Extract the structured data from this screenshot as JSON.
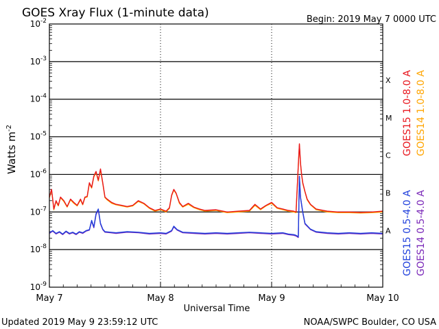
{
  "chart_data": {
    "type": "line",
    "title": "GOES Xray Flux (1-minute data)",
    "begin_label": "Begin:  2019 May 7 0000 UTC",
    "xlabel": "Universal Time",
    "ylabel": "Watts m",
    "ylabel_exp": "-2",
    "y_scale": "log",
    "ylim": [
      1e-09,
      0.01
    ],
    "xlim_days": [
      0,
      3
    ],
    "x_ticks": [
      {
        "day": 0,
        "label": "May 7"
      },
      {
        "day": 1,
        "label": "May 8"
      },
      {
        "day": 2,
        "label": "May 9"
      },
      {
        "day": 3,
        "label": "May 10"
      }
    ],
    "y_ticks": [
      {
        "value": 0.01,
        "exp": "-2"
      },
      {
        "value": 0.001,
        "exp": "-3"
      },
      {
        "value": 0.0001,
        "exp": "-4"
      },
      {
        "value": 1e-05,
        "exp": "-5"
      },
      {
        "value": 1e-06,
        "exp": "-6"
      },
      {
        "value": 1e-07,
        "exp": "-7"
      },
      {
        "value": 1e-08,
        "exp": "-8"
      },
      {
        "value": 1e-09,
        "exp": "-9"
      }
    ],
    "flare_classes": [
      {
        "label": "X",
        "value": 0.00032
      },
      {
        "label": "M",
        "value": 3.2e-05
      },
      {
        "label": "C",
        "value": 3.2e-06
      },
      {
        "label": "B",
        "value": 3.2e-07
      },
      {
        "label": "A",
        "value": 3.2e-08
      }
    ],
    "grid": "horizontal lines at each decade, dotted vertical lines at day boundaries",
    "legend_placement": "right, vertical",
    "series": [
      {
        "name": "GOES15 1.0-8.0 A",
        "color": "#e8141c",
        "x": [
          0.0,
          0.02,
          0.04,
          0.06,
          0.08,
          0.1,
          0.13,
          0.16,
          0.19,
          0.22,
          0.25,
          0.28,
          0.3,
          0.32,
          0.34,
          0.36,
          0.38,
          0.4,
          0.42,
          0.44,
          0.46,
          0.48,
          0.5,
          0.52,
          0.56,
          0.6,
          0.65,
          0.7,
          0.75,
          0.8,
          0.85,
          0.9,
          0.95,
          1.0,
          1.05,
          1.08,
          1.1,
          1.12,
          1.14,
          1.17,
          1.2,
          1.25,
          1.3,
          1.35,
          1.4,
          1.5,
          1.6,
          1.7,
          1.8,
          1.85,
          1.9,
          1.95,
          2.0,
          2.05,
          2.1,
          2.15,
          2.2,
          2.22,
          2.24,
          2.25,
          2.26,
          2.27,
          2.28,
          2.3,
          2.32,
          2.35,
          2.4,
          2.5,
          2.6,
          2.7,
          2.8,
          2.9,
          3.0
        ],
        "y": [
          2.5e-07,
          4e-07,
          1.2e-07,
          2e-07,
          1.5e-07,
          2.5e-07,
          2e-07,
          1.4e-07,
          2.2e-07,
          1.8e-07,
          1.5e-07,
          2.2e-07,
          1.6e-07,
          2.5e-07,
          2.6e-07,
          6e-07,
          4.5e-07,
          9e-07,
          1.2e-06,
          7e-07,
          1.4e-06,
          6e-07,
          2.5e-07,
          2.2e-07,
          1.8e-07,
          1.6e-07,
          1.5e-07,
          1.4e-07,
          1.5e-07,
          2e-07,
          1.7e-07,
          1.3e-07,
          1.1e-07,
          1.2e-07,
          1.05e-07,
          1.3e-07,
          2.8e-07,
          4e-07,
          3.2e-07,
          1.8e-07,
          1.4e-07,
          1.7e-07,
          1.35e-07,
          1.2e-07,
          1.1e-07,
          1.15e-07,
          1e-07,
          1.05e-07,
          1.1e-07,
          1.6e-07,
          1.2e-07,
          1.5e-07,
          1.8e-07,
          1.3e-07,
          1.2e-07,
          1.1e-07,
          1.05e-07,
          1e-07,
          1.8e-06,
          6.5e-06,
          2e-06,
          1e-06,
          6e-07,
          3.5e-07,
          2.2e-07,
          1.6e-07,
          1.2e-07,
          1.05e-07,
          1e-07,
          1e-07,
          9.8e-08,
          1e-07,
          1.05e-07
        ]
      },
      {
        "name": "GOES14 1.0-8.0 A",
        "color": "#ffa500",
        "x": [
          0.0,
          0.02,
          0.04,
          0.06,
          0.08,
          0.1,
          0.13,
          0.16,
          0.19,
          0.22,
          0.25,
          0.28,
          0.3,
          0.32,
          0.34,
          0.36,
          0.38,
          0.4,
          0.42,
          0.44,
          0.46,
          0.48,
          0.5,
          0.52,
          0.56,
          0.6,
          0.65,
          0.7,
          0.75,
          0.8,
          0.85,
          0.9,
          0.95,
          1.0,
          1.05,
          1.08,
          1.1,
          1.12,
          1.14,
          1.17,
          1.2,
          1.25,
          1.3,
          1.35,
          1.4,
          1.5,
          1.6,
          1.7,
          1.8,
          1.85,
          1.9,
          1.95,
          2.0,
          2.05,
          2.1,
          2.15,
          2.2,
          2.22,
          2.24,
          2.25,
          2.26,
          2.27,
          2.28,
          2.3,
          2.32,
          2.35,
          2.4,
          2.5,
          2.6,
          2.7,
          2.8,
          2.9,
          3.0
        ],
        "y": [
          2.4e-07,
          3.8e-07,
          1.15e-07,
          1.9e-07,
          1.45e-07,
          2.4e-07,
          1.9e-07,
          1.35e-07,
          2.1e-07,
          1.7e-07,
          1.45e-07,
          2.1e-07,
          1.55e-07,
          2.4e-07,
          2.5e-07,
          5.7e-07,
          4.3e-07,
          8.5e-07,
          1.15e-06,
          6.7e-07,
          1.3e-06,
          5.7e-07,
          2.4e-07,
          2.1e-07,
          1.7e-07,
          1.55e-07,
          1.45e-07,
          1.35e-07,
          1.45e-07,
          1.9e-07,
          1.65e-07,
          1.25e-07,
          1.05e-07,
          1.15e-07,
          1e-07,
          1.25e-07,
          2.7e-07,
          3.8e-07,
          3.1e-07,
          1.7e-07,
          1.35e-07,
          1.6e-07,
          1.3e-07,
          1.15e-07,
          1.05e-07,
          1.1e-07,
          9.6e-08,
          1e-07,
          1.05e-07,
          1.5e-07,
          1.15e-07,
          1.45e-07,
          1.7e-07,
          1.25e-07,
          1.15e-07,
          1.05e-07,
          1e-07,
          9.6e-08,
          1.7e-06,
          6.2e-06,
          1.9e-06,
          9.6e-07,
          5.7e-07,
          3.4e-07,
          2.1e-07,
          1.55e-07,
          1.15e-07,
          1e-07,
          9.6e-08,
          9.6e-08,
          9.4e-08,
          9.6e-08,
          1e-07
        ]
      },
      {
        "name": "GOES15 0.5-4.0 A",
        "color": "#1f3fdc",
        "x": [
          0.0,
          0.03,
          0.06,
          0.09,
          0.12,
          0.15,
          0.18,
          0.21,
          0.24,
          0.27,
          0.3,
          0.33,
          0.36,
          0.38,
          0.4,
          0.42,
          0.44,
          0.46,
          0.48,
          0.5,
          0.55,
          0.6,
          0.7,
          0.8,
          0.9,
          1.0,
          1.05,
          1.1,
          1.12,
          1.15,
          1.2,
          1.3,
          1.4,
          1.5,
          1.6,
          1.7,
          1.8,
          1.9,
          2.0,
          2.1,
          2.15,
          2.2,
          2.22,
          2.24,
          2.25,
          2.26,
          2.28,
          2.3,
          2.35,
          2.4,
          2.5,
          2.6,
          2.7,
          2.8,
          2.9,
          3.0
        ],
        "y": [
          2.8e-08,
          3.2e-08,
          2.7e-08,
          3e-08,
          2.6e-08,
          3.1e-08,
          2.7e-08,
          2.9e-08,
          2.6e-08,
          3e-08,
          2.8e-08,
          3.2e-08,
          3.4e-08,
          6e-08,
          4e-08,
          9e-08,
          1.2e-07,
          5e-08,
          3.5e-08,
          3e-08,
          2.9e-08,
          2.8e-08,
          3e-08,
          2.9e-08,
          2.7e-08,
          2.8e-08,
          2.7e-08,
          3.2e-08,
          4.2e-08,
          3.4e-08,
          2.9e-08,
          2.8e-08,
          2.7e-08,
          2.8e-08,
          2.7e-08,
          2.8e-08,
          2.9e-08,
          2.8e-08,
          2.7e-08,
          2.8e-08,
          2.6e-08,
          2.5e-08,
          2.4e-08,
          2.2e-08,
          9e-07,
          2.5e-07,
          1e-07,
          5e-08,
          3.5e-08,
          3e-08,
          2.8e-08,
          2.7e-08,
          2.8e-08,
          2.7e-08,
          2.8e-08,
          2.7e-08
        ]
      },
      {
        "name": "GOES14 0.5-4.0 A",
        "color": "#7a28b8",
        "x": [
          0.0,
          0.03,
          0.06,
          0.09,
          0.12,
          0.15,
          0.18,
          0.21,
          0.24,
          0.27,
          0.3,
          0.33,
          0.36,
          0.38,
          0.4,
          0.42,
          0.44,
          0.46,
          0.48,
          0.5,
          0.55,
          0.6,
          0.7,
          0.8,
          0.9,
          1.0,
          1.05,
          1.1,
          1.12,
          1.15,
          1.2,
          1.3,
          1.4,
          1.5,
          1.6,
          1.7,
          1.8,
          1.9,
          2.0,
          2.1,
          2.15,
          2.2,
          2.22,
          2.24,
          2.25,
          2.26,
          2.28,
          2.3,
          2.35,
          2.4,
          2.5,
          2.6,
          2.7,
          2.8,
          2.9,
          3.0
        ],
        "y": [
          2.7e-08,
          3.1e-08,
          2.6e-08,
          2.9e-08,
          2.5e-08,
          3e-08,
          2.6e-08,
          2.8e-08,
          2.5e-08,
          2.9e-08,
          2.7e-08,
          3.1e-08,
          3.3e-08,
          5.7e-08,
          3.8e-08,
          8.5e-08,
          1.15e-07,
          4.8e-08,
          3.4e-08,
          2.9e-08,
          2.8e-08,
          2.7e-08,
          2.9e-08,
          2.8e-08,
          2.6e-08,
          2.7e-08,
          2.6e-08,
          3.1e-08,
          4e-08,
          3.3e-08,
          2.8e-08,
          2.7e-08,
          2.6e-08,
          2.7e-08,
          2.6e-08,
          2.7e-08,
          2.8e-08,
          2.7e-08,
          2.6e-08,
          2.7e-08,
          2.5e-08,
          2.4e-08,
          2.3e-08,
          2.1e-08,
          8.6e-07,
          2.4e-07,
          9.6e-08,
          4.8e-08,
          3.4e-08,
          2.9e-08,
          2.7e-08,
          2.6e-08,
          2.7e-08,
          2.6e-08,
          2.7e-08,
          2.6e-08
        ]
      }
    ]
  },
  "footer": {
    "updated": "Updated 2019 May  9 23:59:12 UTC",
    "source": "NOAA/SWPC Boulder, CO USA"
  }
}
